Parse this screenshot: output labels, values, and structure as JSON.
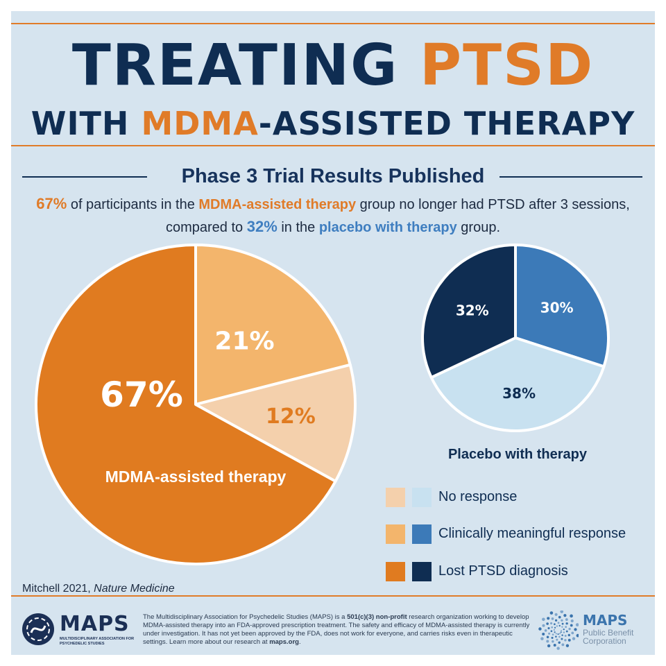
{
  "title": {
    "line1_a": "TREATING",
    "line1_b": "PTSD",
    "line2_a": "WITH",
    "line2_b": "MDMA",
    "line2_c": "-ASSISTED THERAPY"
  },
  "subtitle": "Phase 3 Trial Results Published",
  "description": {
    "pct_mdma": "67%",
    "part1": " of participants in the ",
    "mdma_group": "MDMA-assisted therapy",
    "part2": " group no longer had PTSD after 3 sessions,",
    "part3": "compared to ",
    "pct_placebo": "32%",
    "part4": " in the ",
    "placebo_group": "placebo with therapy",
    "part5": " group."
  },
  "chart_data": [
    {
      "type": "pie",
      "title": "MDMA-assisted therapy",
      "categories": [
        "Clinically meaningful response",
        "No response",
        "Lost PTSD diagnosis"
      ],
      "values": [
        21,
        12,
        67
      ],
      "labels": [
        "21%",
        "12%",
        "67%"
      ],
      "colors": [
        "#f3b56c",
        "#f4d0ac",
        "#e07b20"
      ],
      "label_colors": [
        "#ffffff",
        "#e07b20",
        "#ffffff"
      ]
    },
    {
      "type": "pie",
      "title": "Placebo with therapy",
      "categories": [
        "Clinically meaningful response",
        "No response",
        "Lost PTSD diagnosis"
      ],
      "values": [
        30,
        38,
        32
      ],
      "labels": [
        "30%",
        "38%",
        "32%"
      ],
      "colors": [
        "#3c7ab8",
        "#c8e1f0",
        "#0f2d52"
      ],
      "label_colors": [
        "#ffffff",
        "#0f2d52",
        "#ffffff"
      ]
    }
  ],
  "legend": {
    "title": "Placebo with therapy",
    "items": [
      {
        "label": "No response",
        "orange": "#f4d0ac",
        "blue": "#c8e1f0"
      },
      {
        "label": "Clinically meaningful response",
        "orange": "#f3b56c",
        "blue": "#3c7ab8"
      },
      {
        "label": "Lost PTSD diagnosis",
        "orange": "#e07b20",
        "blue": "#0f2d52"
      }
    ]
  },
  "citation": {
    "author": "Mitchell 2021, ",
    "journal": "Nature Medicine"
  },
  "footer": {
    "text_a": "The Multidisciplinary Association for Psychedelic Studies (MAPS) is a ",
    "text_bold": "501(c)(3) non-profit",
    "text_b": " research organization working to develop MDMA-assisted therapy into an FDA-approved prescription treatment. The safety and efficacy of MDMA-assisted therapy is currently under investigation. It has not yet been approved by the FDA, does not work for everyone, and carries risks even in therapeutic settings. Learn more about our research at ",
    "link": "maps.org",
    "text_end": "."
  },
  "logo_left": {
    "word": "MAPS",
    "sub": "MULTIDISCIPLINARY ASSOCIATION FOR PSYCHEDELIC STUDIES"
  },
  "logo_right": {
    "word": "MAPS",
    "sub": "Public Benefit Corporation"
  },
  "colors": {
    "navy": "#0f2d52",
    "orange": "#e07b28",
    "background": "#d6e4ef"
  }
}
